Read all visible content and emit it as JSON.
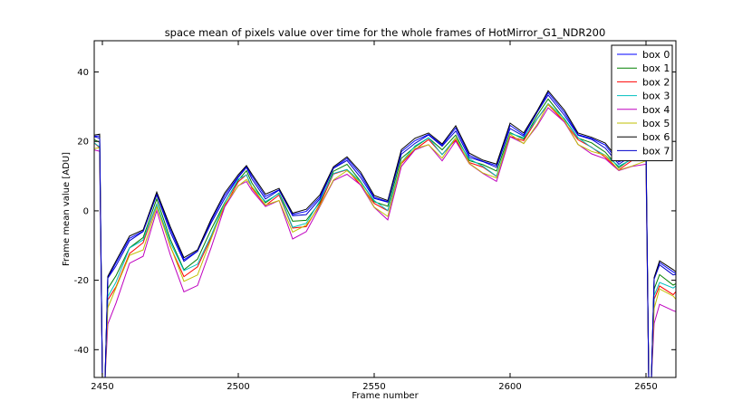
{
  "chart_data": {
    "type": "line",
    "title": "space mean of pixels value over time for the whole frames of HotMirror_G1_NDR200",
    "xlabel": "Frame number",
    "ylabel": "Frame mean value [ADU]",
    "xlim": [
      2447,
      2661
    ],
    "ylim": [
      -48,
      49
    ],
    "xticks": [
      2450,
      2500,
      2550,
      2600,
      2650
    ],
    "yticks": [
      -40,
      -20,
      0,
      20,
      40
    ],
    "grid": false,
    "legend_position": "top-right",
    "base_x": [
      2447,
      2449,
      2450,
      2451,
      2452,
      2455,
      2460,
      2465,
      2470,
      2475,
      2480,
      2485,
      2490,
      2495,
      2500,
      2503,
      2505,
      2510,
      2515,
      2520,
      2525,
      2530,
      2535,
      2540,
      2545,
      2550,
      2555,
      2560,
      2565,
      2570,
      2575,
      2580,
      2585,
      2590,
      2595,
      2600,
      2605,
      2610,
      2614,
      2620,
      2625,
      2630,
      2635,
      2640,
      2645,
      2650,
      2651,
      2652,
      2653,
      2655,
      2660,
      2661
    ],
    "base_y": [
      21,
      20.5,
      -48,
      -48,
      -20,
      -16,
      -8,
      -6,
      4,
      -6,
      -14,
      -12,
      -4,
      4,
      10,
      12,
      9,
      4,
      6,
      -2,
      -1,
      4,
      12,
      14,
      10,
      4,
      2,
      16,
      20,
      22,
      18,
      23,
      16,
      14,
      12,
      24,
      22,
      28,
      33,
      28,
      22,
      20,
      18,
      14,
      16,
      17,
      -48,
      -48,
      -20,
      -16,
      -18,
      -18
    ],
    "series": [
      {
        "name": "box 0",
        "color": "#0000ff",
        "offset": 0.5,
        "low_bias": 0.0
      },
      {
        "name": "box 1",
        "color": "#008000",
        "offset": -1.0,
        "low_bias": 2.0
      },
      {
        "name": "box 2",
        "color": "#ff0000",
        "offset": -2.0,
        "low_bias": 4.0
      },
      {
        "name": "box 3",
        "color": "#00bfbf",
        "offset": -1.5,
        "low_bias": 3.0
      },
      {
        "name": "box 4",
        "color": "#bf00bf",
        "offset": -3.0,
        "low_bias": 9.0
      },
      {
        "name": "box 5",
        "color": "#bfbf00",
        "offset": -2.5,
        "low_bias": 5.0
      },
      {
        "name": "box 6",
        "color": "#000000",
        "offset": 1.0,
        "low_bias": 0.0
      },
      {
        "name": "box 7",
        "color": "#0000cc",
        "offset": 0.0,
        "low_bias": 0.0
      }
    ]
  }
}
